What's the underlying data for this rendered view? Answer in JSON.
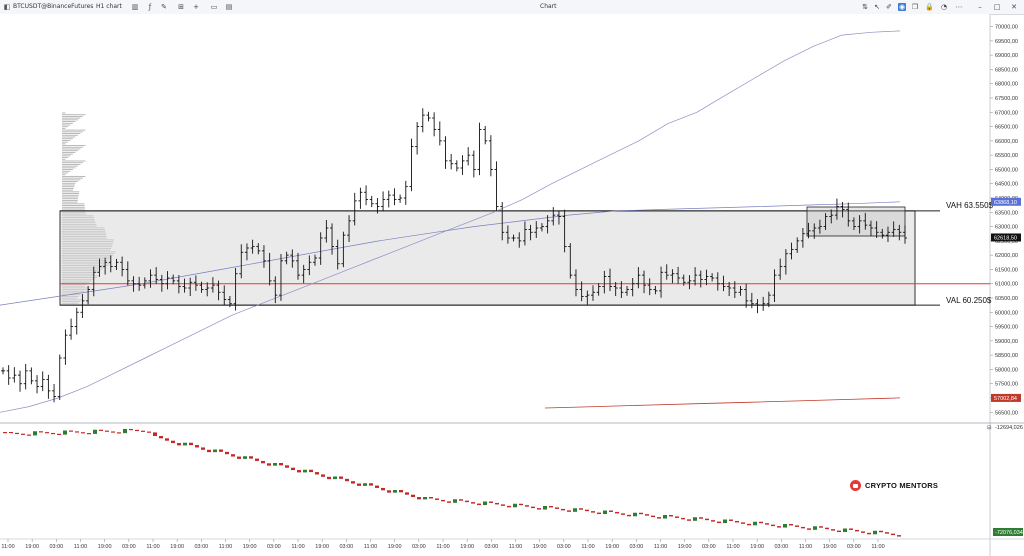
{
  "toolbar": {
    "symbol": "BTCUSDT@BinanceFutures",
    "interval": "H1 chart",
    "window_title": "Chart",
    "icons_left": [
      "chart-type-icon",
      "indicators-icon",
      "drawing-icon",
      "crosshair-icon",
      "add-icon",
      "layout-icon",
      "template-icon",
      "settings-icon"
    ],
    "icons_right": [
      "sort-icon",
      "cursor-icon",
      "brush-icon",
      "link-icon",
      "chart-mode-icon",
      "copy-icon",
      "lock-icon",
      "bell-icon",
      "more-icon",
      "minimize-icon",
      "maximize-icon",
      "close-icon"
    ]
  },
  "price_axis": {
    "ticks": [
      "70000,00",
      "69500,00",
      "69000,00",
      "68500,00",
      "68000,00",
      "67500,00",
      "67000,00",
      "66500,00",
      "66000,00",
      "65500,00",
      "65000,00",
      "64500,00",
      "64000,00",
      "63500,00",
      "63000,00",
      "62500,00",
      "62000,00",
      "61500,00",
      "61000,00",
      "60500,00",
      "60000,00",
      "59500,00",
      "59000,00",
      "58500,00",
      "58000,00",
      "57500,00",
      "57000,00",
      "56500,00"
    ],
    "badges": [
      {
        "text": "63868,10",
        "color": "#5b6fd6"
      },
      {
        "text": "62618,50",
        "color": "#111111"
      },
      {
        "text": "57002,84",
        "color": "#c0392b"
      }
    ]
  },
  "levels": {
    "vah_label": "VAH 63.550$",
    "val_label": "VAL 60.250$",
    "vah": 63550,
    "val": 60250,
    "poc": 61000,
    "poc_color": "#e53935"
  },
  "lower_pane": {
    "top_value": "-12694,026",
    "bottom_value": "-72076,034",
    "pane_button": "⊟"
  },
  "time_axis": {
    "labels": [
      "11:00",
      "19:00",
      "03:00",
      "11:00",
      "19:00",
      "03:00",
      "11:00",
      "19:00",
      "03:00",
      "11:00",
      "19:00",
      "03:00",
      "11:00",
      "19:00",
      "03:00",
      "11:00",
      "19:00",
      "03:00",
      "11:00",
      "19:00",
      "03:00",
      "11:00",
      "19:00",
      "03:00",
      "11:00",
      "19:00",
      "03:00",
      "11:00",
      "19:00",
      "03:00",
      "11:00",
      "19:00",
      "03:00",
      "11:00",
      "19:00",
      "03:00",
      "11:00"
    ]
  },
  "watermark": {
    "text": "CRYPTO MENTORS",
    "badge_color": "#e53935"
  },
  "chart_data": {
    "type": "line",
    "series": [
      {
        "name": "",
        "values": [
          57950,
          57700,
          57800,
          57500,
          57950,
          57600,
          57400,
          57650,
          57250,
          57050,
          58400,
          59200,
          59500,
          60000,
          60400,
          60800,
          61400,
          61600,
          61750,
          61600,
          61750,
          61500,
          61100,
          61000,
          60950,
          61100,
          61300,
          61150,
          61000,
          61200,
          61100,
          60900,
          60850,
          61050,
          60950,
          60800,
          60850,
          60950,
          60700,
          60450,
          60300,
          61350,
          62100,
          62250,
          62300,
          62150,
          61800,
          61100,
          60600,
          61800,
          62000,
          61800,
          61300,
          61500,
          61750,
          61900,
          62600,
          62950,
          62300,
          61700,
          62700,
          63200,
          63900,
          64200,
          63950,
          63800,
          63700,
          63950,
          64100,
          63950,
          64000,
          64400,
          65800,
          66500,
          66900,
          66800,
          66400,
          66000,
          65300,
          65200,
          65050,
          65300,
          65500,
          65000,
          66400,
          66000,
          65000,
          63700,
          62800,
          62600,
          62600,
          62500,
          62900,
          62800,
          62950,
          63000,
          63200,
          63400,
          63350,
          62300,
          61300,
          60800,
          60550,
          60600,
          60700,
          60900,
          61250,
          60900,
          60850,
          60700,
          60800,
          61000,
          61300,
          60950,
          60800,
          60750,
          61400,
          61300,
          61350,
          61200,
          61050,
          61100,
          61300,
          61150,
          61250,
          61200,
          61000,
          60900,
          60850,
          60700,
          60800,
          60400,
          60300,
          60250,
          60300,
          60600,
          61300,
          61600,
          62050,
          62200,
          62500,
          62750,
          62850,
          62950,
          63000,
          63350,
          63400,
          63700,
          63600,
          63200,
          63000,
          63200,
          63050,
          62950,
          62800,
          62700,
          62800,
          62900,
          62800,
          62600
        ]
      },
      {
        "name": "",
        "values": [
          56500,
          56700,
          57000,
          57400,
          57900,
          58400,
          58900,
          59400,
          59900,
          60300,
          60700,
          61100,
          61500,
          61900,
          62300,
          62700,
          63100,
          63500,
          63950,
          64500,
          65000,
          65500,
          66000,
          66600,
          67000,
          67600,
          68200,
          68800,
          69300,
          69700,
          69800,
          69850
        ]
      },
      {
        "name": "",
        "values": [
          60250,
          60500,
          60750,
          61000,
          61300,
          61600,
          61900,
          62200,
          62500,
          62750,
          63000,
          63200,
          63400,
          63550,
          63600,
          63650,
          63700,
          63750,
          63800,
          63868
        ]
      },
      {
        "name": "",
        "values": [
          56650,
          56700,
          56750,
          56800,
          56850,
          56900,
          56950,
          57002
        ]
      }
    ],
    "ylim": [
      56300,
      70300
    ],
    "legend": "none",
    "grid": false
  }
}
